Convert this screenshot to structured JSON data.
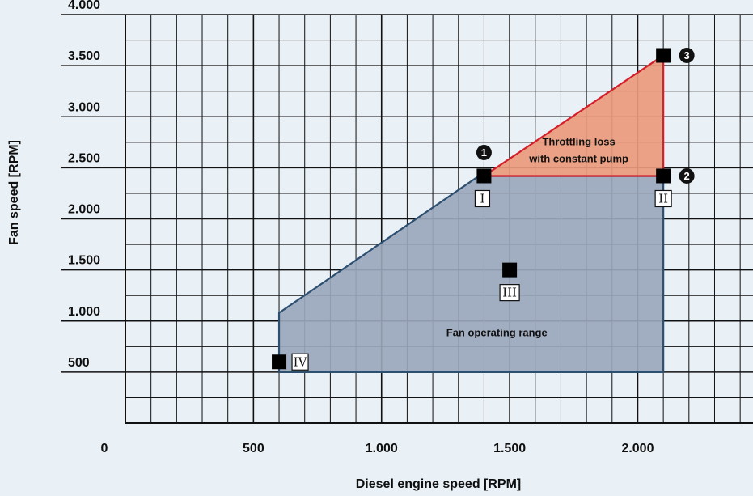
{
  "chart_data": {
    "type": "area",
    "xlabel": "Diesel engine speed [RPM]",
    "ylabel": "Fan speed [RPM]",
    "xlim": [
      0,
      2450
    ],
    "ylim": [
      0,
      4000
    ],
    "x_ticks": [
      {
        "value": 0,
        "label": "0"
      },
      {
        "value": 500,
        "label": "500"
      },
      {
        "value": 1000,
        "label": "1.000"
      },
      {
        "value": 1500,
        "label": "1.500"
      },
      {
        "value": 2000,
        "label": "2.000"
      }
    ],
    "y_ticks": [
      {
        "value": 500,
        "label": "500"
      },
      {
        "value": 1000,
        "label": "1.000"
      },
      {
        "value": 1500,
        "label": "1.500"
      },
      {
        "value": 2000,
        "label": "2.000"
      },
      {
        "value": 2500,
        "label": "2.500"
      },
      {
        "value": 3000,
        "label": "3.000"
      },
      {
        "value": 3500,
        "label": "3.500"
      },
      {
        "value": 4000,
        "label": "4.000"
      }
    ],
    "grid": true,
    "grid_step_x": 100,
    "grid_step_y": 250,
    "regions": [
      {
        "label": "Fan operating range",
        "fill": "#9aa7bb",
        "stroke": "#2d4f70",
        "points": [
          [
            600,
            500
          ],
          [
            600,
            1080
          ],
          [
            1380,
            2420
          ],
          [
            2100,
            2420
          ],
          [
            2100,
            500
          ]
        ],
        "label_at": [
          1450,
          850
        ]
      },
      {
        "label_lines": [
          "Throttling loss",
          "with constant pump"
        ],
        "fill": "#e99a7c",
        "stroke": "#d41f2a",
        "points": [
          [
            1400,
            2420
          ],
          [
            2100,
            3600
          ],
          [
            2100,
            2420
          ]
        ],
        "label_at": [
          1770,
          2720
        ]
      }
    ],
    "points": [
      {
        "x": 1400,
        "y": 2420,
        "roman": "I",
        "number": "1"
      },
      {
        "x": 2100,
        "y": 2420,
        "roman": "II",
        "number": "2"
      },
      {
        "x": 2100,
        "y": 3600,
        "roman": "",
        "number": "3"
      },
      {
        "x": 1500,
        "y": 1500,
        "roman": "III",
        "number": ""
      },
      {
        "x": 600,
        "y": 600,
        "roman": "IV",
        "number": ""
      }
    ],
    "colors": {
      "background": "#e9f0f6",
      "grid": "#111111",
      "marker": "#000000"
    }
  }
}
